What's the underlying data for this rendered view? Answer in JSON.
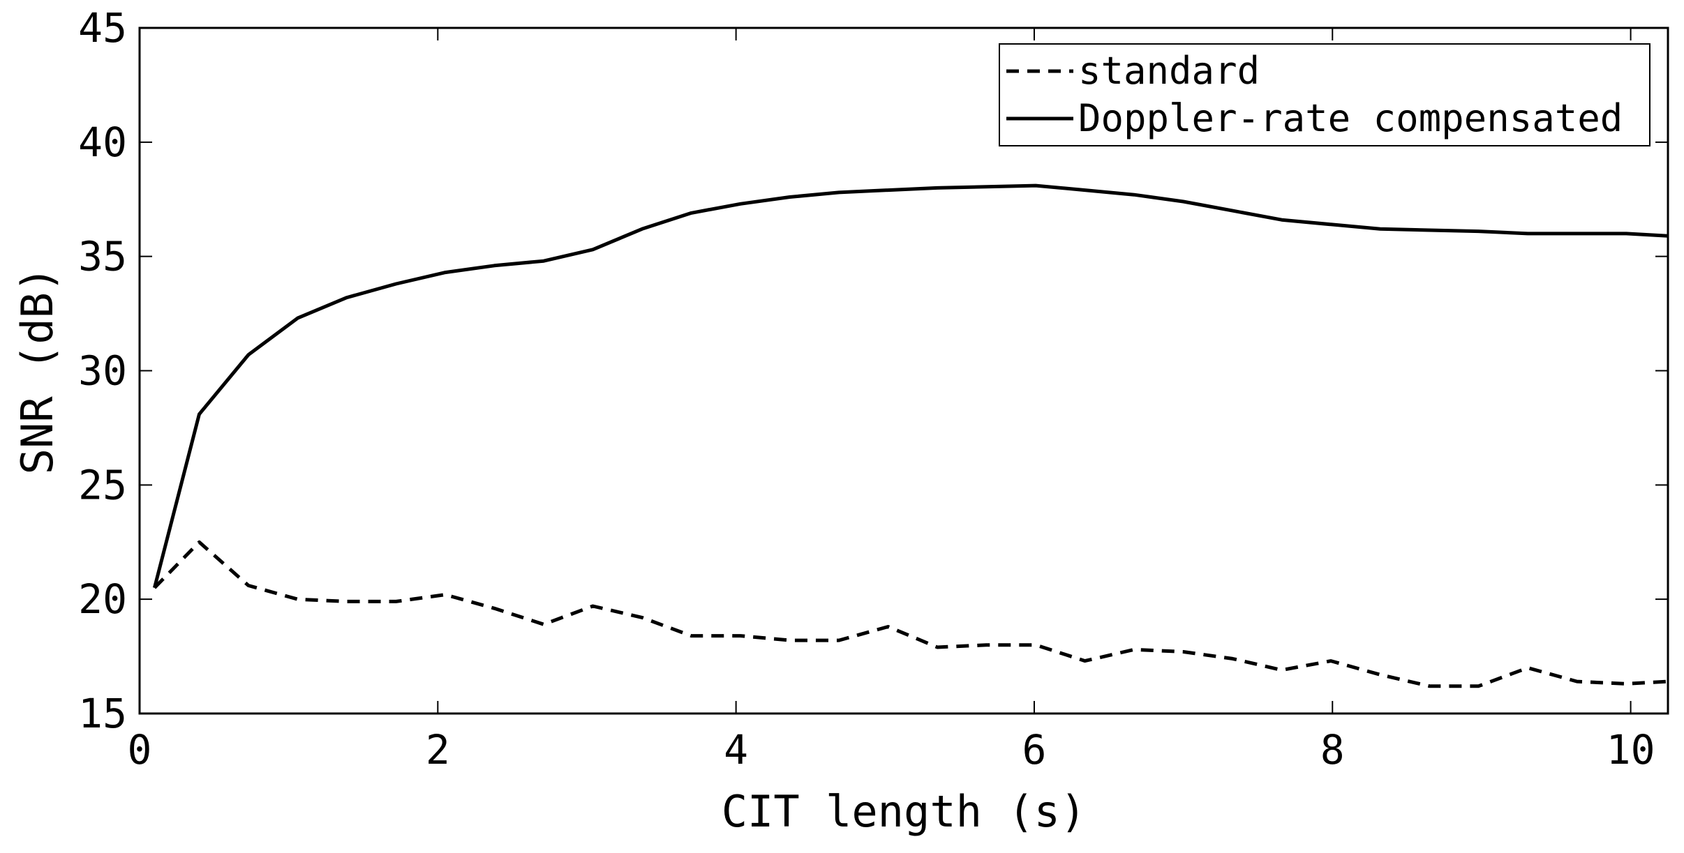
{
  "chart_data": {
    "type": "line",
    "xlabel": "CIT length (s)",
    "ylabel": "SNR (dB)",
    "xlim": [
      0,
      10.25
    ],
    "ylim": [
      15,
      45
    ],
    "xticks": [
      0,
      2,
      4,
      6,
      8,
      10
    ],
    "yticks": [
      15,
      20,
      25,
      30,
      35,
      40,
      45
    ],
    "grid": false,
    "legend": {
      "position": "top-right"
    },
    "series": [
      {
        "name": "standard",
        "style": "dashed",
        "color": "#000000",
        "x": [
          0.1,
          0.4,
          0.73,
          1.06,
          1.39,
          1.72,
          2.05,
          2.38,
          2.71,
          3.04,
          3.37,
          3.7,
          4.03,
          4.36,
          4.69,
          5.02,
          5.35,
          5.68,
          6.01,
          6.34,
          6.67,
          7.0,
          7.33,
          7.66,
          7.99,
          8.32,
          8.65,
          8.98,
          9.31,
          9.64,
          9.97,
          10.25
        ],
        "values": [
          20.5,
          22.5,
          20.6,
          20.0,
          19.9,
          19.9,
          20.2,
          19.6,
          18.9,
          19.7,
          19.2,
          18.4,
          18.4,
          18.2,
          18.2,
          18.8,
          17.9,
          18.0,
          18.0,
          17.3,
          17.8,
          17.7,
          17.4,
          16.9,
          17.3,
          16.7,
          16.2,
          16.2,
          17.0,
          16.4,
          16.3,
          16.4
        ]
      },
      {
        "name": "Doppler-rate compensated",
        "style": "solid",
        "color": "#000000",
        "x": [
          0.1,
          0.4,
          0.73,
          1.06,
          1.39,
          1.72,
          2.05,
          2.38,
          2.71,
          3.04,
          3.37,
          3.7,
          4.03,
          4.36,
          4.69,
          5.02,
          5.35,
          5.68,
          6.01,
          6.34,
          6.67,
          7.0,
          7.33,
          7.66,
          7.99,
          8.32,
          8.65,
          8.98,
          9.31,
          9.64,
          9.97,
          10.25
        ],
        "values": [
          20.5,
          28.1,
          30.7,
          32.3,
          33.2,
          33.8,
          34.3,
          34.6,
          34.8,
          35.3,
          36.2,
          36.9,
          37.3,
          37.6,
          37.8,
          37.9,
          38.0,
          38.05,
          38.1,
          37.9,
          37.7,
          37.4,
          37.0,
          36.6,
          36.4,
          36.2,
          36.15,
          36.1,
          36.0,
          36.0,
          36.0,
          35.9
        ]
      }
    ]
  }
}
